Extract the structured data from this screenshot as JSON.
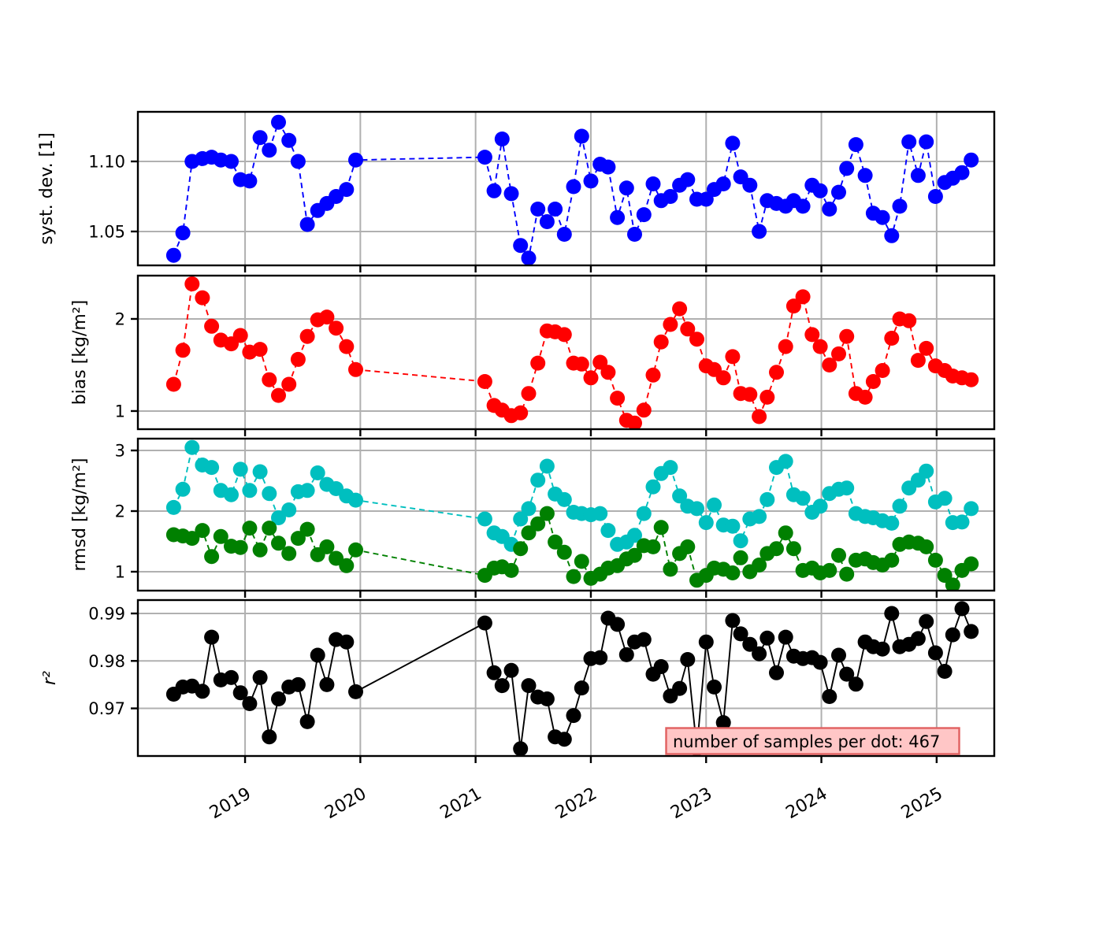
{
  "figure": {
    "background": "#ffffff",
    "grid_color": "#b0b0b0",
    "spine_color": "#000000"
  },
  "annotation": {
    "text": "number of samples per dot: 467",
    "bg": "#ffc6c6",
    "border": "#e06060",
    "text_color": "#000000"
  },
  "chart_data": {
    "type": "line",
    "title": "",
    "xlabel": "",
    "grid": true,
    "legend": "none",
    "marker": "o",
    "xlim": [
      2018.07,
      2025.5
    ],
    "x_ticks": {
      "values": [
        2019,
        2020,
        2021,
        2022,
        2023,
        2024,
        2025
      ],
      "labels": [
        "2019",
        "2020",
        "2021",
        "2022",
        "2023",
        "2024",
        "2025"
      ]
    },
    "x": [
      2018.38,
      2018.46,
      2018.54,
      2018.63,
      2018.71,
      2018.79,
      2018.88,
      2018.96,
      2019.04,
      2019.13,
      2019.21,
      2019.29,
      2019.38,
      2019.46,
      2019.54,
      2019.63,
      2019.71,
      2019.79,
      2019.88,
      2019.96,
      2021.08,
      2021.16,
      2021.23,
      2021.31,
      2021.39,
      2021.46,
      2021.54,
      2021.62,
      2021.69,
      2021.77,
      2021.85,
      2021.92,
      2022.0,
      2022.08,
      2022.15,
      2022.23,
      2022.31,
      2022.38,
      2022.46,
      2022.54,
      2022.61,
      2022.69,
      2022.77,
      2022.84,
      2022.92,
      2023.0,
      2023.07,
      2023.15,
      2023.23,
      2023.3,
      2023.38,
      2023.46,
      2023.53,
      2023.61,
      2023.69,
      2023.76,
      2023.84,
      2023.92,
      2023.99,
      2024.07,
      2024.15,
      2024.22,
      2024.3,
      2024.38,
      2024.45,
      2024.53,
      2024.61,
      2024.68,
      2024.76,
      2024.84,
      2024.91,
      2024.99,
      2025.07,
      2025.14,
      2025.22,
      2025.3
    ],
    "panels": [
      {
        "id": "syst-dev",
        "ylabel": "syst. dev. [1]",
        "ylabel_italic": false,
        "ylim": [
          1.0258,
          1.1354
        ],
        "yticks": [
          {
            "v": 1.05,
            "label": "1.05"
          },
          {
            "v": 1.1,
            "label": "1.10"
          }
        ],
        "series": [
          {
            "name": "syst. dev.",
            "color": "#0000ff",
            "linestyle": "dashed",
            "values": [
              1.033,
              1.049,
              1.1,
              1.102,
              1.103,
              1.101,
              1.1,
              1.087,
              1.086,
              1.117,
              1.108,
              1.128,
              1.115,
              1.1,
              1.055,
              1.065,
              1.07,
              1.075,
              1.08,
              1.101,
              1.103,
              1.079,
              1.116,
              1.077,
              1.04,
              1.031,
              1.066,
              1.057,
              1.066,
              1.048,
              1.082,
              1.118,
              1.086,
              1.098,
              1.096,
              1.06,
              1.081,
              1.048,
              1.062,
              1.084,
              1.072,
              1.075,
              1.083,
              1.087,
              1.073,
              1.073,
              1.08,
              1.084,
              1.113,
              1.089,
              1.083,
              1.05,
              1.072,
              1.07,
              1.068,
              1.072,
              1.068,
              1.083,
              1.079,
              1.066,
              1.078,
              1.095,
              1.112,
              1.09,
              1.063,
              1.06,
              1.047,
              1.068,
              1.114,
              1.09,
              1.114,
              1.075,
              1.085,
              1.088,
              1.092,
              1.101
            ]
          }
        ]
      },
      {
        "id": "bias",
        "ylabel": "bias [kg/m²]",
        "ylabel_italic": false,
        "ylim": [
          0.803,
          2.47
        ],
        "yticks": [
          {
            "v": 1,
            "label": "1"
          },
          {
            "v": 2,
            "label": "2"
          }
        ],
        "series": [
          {
            "name": "bias",
            "color": "#ff0000",
            "linestyle": "dashed",
            "values": [
              1.29,
              1.66,
              2.38,
              2.23,
              1.92,
              1.77,
              1.73,
              1.82,
              1.64,
              1.67,
              1.34,
              1.17,
              1.29,
              1.56,
              1.81,
              1.99,
              2.02,
              1.9,
              1.7,
              1.45,
              1.32,
              1.06,
              1.01,
              0.95,
              0.98,
              1.19,
              1.52,
              1.87,
              1.86,
              1.83,
              1.52,
              1.51,
              1.36,
              1.53,
              1.42,
              1.14,
              0.9,
              0.87,
              1.01,
              1.39,
              1.75,
              1.94,
              2.11,
              1.89,
              1.78,
              1.49,
              1.45,
              1.36,
              1.59,
              1.19,
              1.18,
              0.94,
              1.15,
              1.42,
              1.7,
              2.14,
              2.24,
              1.83,
              1.7,
              1.5,
              1.62,
              1.81,
              1.19,
              1.15,
              1.32,
              1.44,
              1.79,
              2.0,
              1.98,
              1.55,
              1.68,
              1.49,
              1.44,
              1.38,
              1.36,
              1.34
            ]
          }
        ]
      },
      {
        "id": "rmsd",
        "ylabel": "rmsd [kg/m²]",
        "ylabel_italic": false,
        "ylim": [
          0.688,
          3.195
        ],
        "yticks": [
          {
            "v": 1,
            "label": "1"
          },
          {
            "v": 2,
            "label": "2"
          },
          {
            "v": 3,
            "label": "3"
          }
        ],
        "series": [
          {
            "name": "rmsd",
            "color": "#00bfbf",
            "linestyle": "dashed",
            "values": [
              2.06,
              2.36,
              3.05,
              2.76,
              2.72,
              2.34,
              2.27,
              2.69,
              2.34,
              2.65,
              2.29,
              1.89,
              2.02,
              2.32,
              2.34,
              2.63,
              2.44,
              2.37,
              2.25,
              2.18,
              1.87,
              1.64,
              1.58,
              1.45,
              1.87,
              2.04,
              2.51,
              2.74,
              2.28,
              2.19,
              1.98,
              1.96,
              1.94,
              1.96,
              1.68,
              1.45,
              1.49,
              1.6,
              1.96,
              2.4,
              2.62,
              2.72,
              2.25,
              2.08,
              2.04,
              1.81,
              2.1,
              1.77,
              1.75,
              1.51,
              1.87,
              1.91,
              2.19,
              2.72,
              2.82,
              2.27,
              2.21,
              1.98,
              2.08,
              2.29,
              2.36,
              2.38,
              1.96,
              1.91,
              1.89,
              1.84,
              1.8,
              2.08,
              2.38,
              2.51,
              2.66,
              2.15,
              2.21,
              1.81,
              1.82,
              2.04
            ]
          },
          {
            "name": "rmsd (corrected)",
            "color": "#008000",
            "linestyle": "dashed",
            "values": [
              1.61,
              1.59,
              1.55,
              1.68,
              1.25,
              1.58,
              1.42,
              1.4,
              1.72,
              1.36,
              1.72,
              1.47,
              1.3,
              1.55,
              1.7,
              1.28,
              1.41,
              1.22,
              1.1,
              1.36,
              0.94,
              1.06,
              1.08,
              1.02,
              1.38,
              1.64,
              1.79,
              1.96,
              1.49,
              1.32,
              0.92,
              1.17,
              0.89,
              0.96,
              1.06,
              1.1,
              1.21,
              1.27,
              1.43,
              1.41,
              1.73,
              1.04,
              1.3,
              1.41,
              0.86,
              0.94,
              1.06,
              1.04,
              0.98,
              1.23,
              1.0,
              1.11,
              1.3,
              1.38,
              1.64,
              1.38,
              1.02,
              1.06,
              0.98,
              1.02,
              1.27,
              0.96,
              1.19,
              1.21,
              1.15,
              1.11,
              1.19,
              1.45,
              1.49,
              1.47,
              1.41,
              1.19,
              0.94,
              0.78,
              1.02,
              1.13
            ]
          }
        ]
      },
      {
        "id": "r2",
        "ylabel": "r²",
        "ylabel_italic": true,
        "ylim": [
          0.95997,
          0.99282
        ],
        "yticks": [
          {
            "v": 0.97,
            "label": "0.97"
          },
          {
            "v": 0.98,
            "label": "0.98"
          },
          {
            "v": 0.99,
            "label": "0.99"
          }
        ],
        "series": [
          {
            "name": "r²",
            "color": "#000000",
            "linestyle": "solid",
            "values": [
              0.973,
              0.9745,
              0.9747,
              0.9736,
              0.985,
              0.976,
              0.9765,
              0.9733,
              0.971,
              0.9765,
              0.964,
              0.972,
              0.9745,
              0.975,
              0.9672,
              0.9812,
              0.975,
              0.9845,
              0.984,
              0.9735,
              0.988,
              0.9775,
              0.9748,
              0.978,
              0.9615,
              0.9748,
              0.9724,
              0.972,
              0.964,
              0.9635,
              0.9685,
              0.9743,
              0.9805,
              0.9807,
              0.989,
              0.9877,
              0.9813,
              0.984,
              0.9845,
              0.9772,
              0.9788,
              0.9726,
              0.9742,
              0.9803,
              0.9615,
              0.984,
              0.9745,
              0.967,
              0.9885,
              0.9857,
              0.9835,
              0.9815,
              0.9848,
              0.9775,
              0.985,
              0.981,
              0.9805,
              0.9807,
              0.9797,
              0.9725,
              0.9812,
              0.9772,
              0.9751,
              0.984,
              0.983,
              0.9825,
              0.99,
              0.983,
              0.9835,
              0.9847,
              0.9883,
              0.9817,
              0.9778,
              0.9855,
              0.991,
              0.9862
            ]
          }
        ]
      }
    ]
  }
}
